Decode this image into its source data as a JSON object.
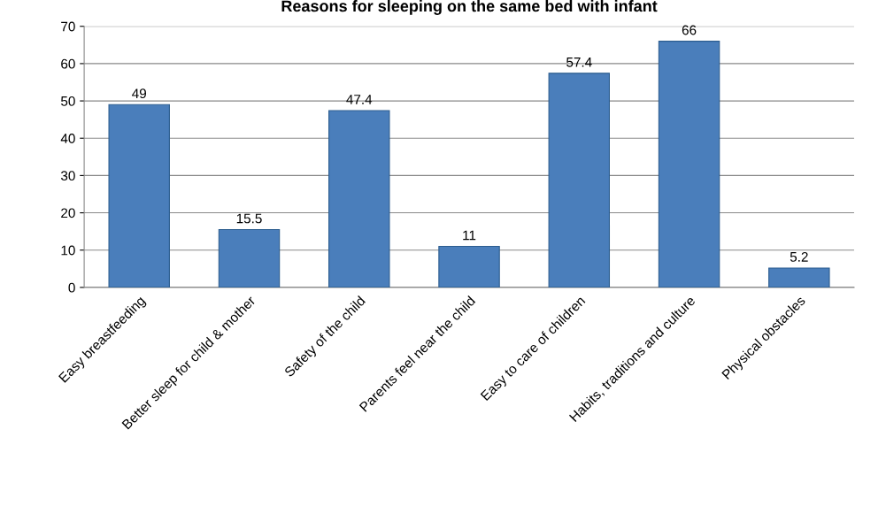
{
  "chart_data": {
    "type": "bar",
    "title": "Reasons for sleeping on the same bed with infant",
    "categories": [
      "Easy breastfeeding",
      "Better sleep for child & mother",
      "Safety of the child",
      "Parents feel near the child",
      "Easy to care of children",
      "Habits, traditions and culture",
      "Physical obstacles"
    ],
    "values": [
      49,
      15.5,
      47.4,
      11,
      57.4,
      66,
      5.2
    ],
    "color": "#4a7ebb",
    "ylim": [
      0,
      70
    ],
    "yticks": [
      0,
      10,
      20,
      30,
      40,
      50,
      60,
      70
    ],
    "grid": "y",
    "data_labels": true,
    "legend": false
  }
}
